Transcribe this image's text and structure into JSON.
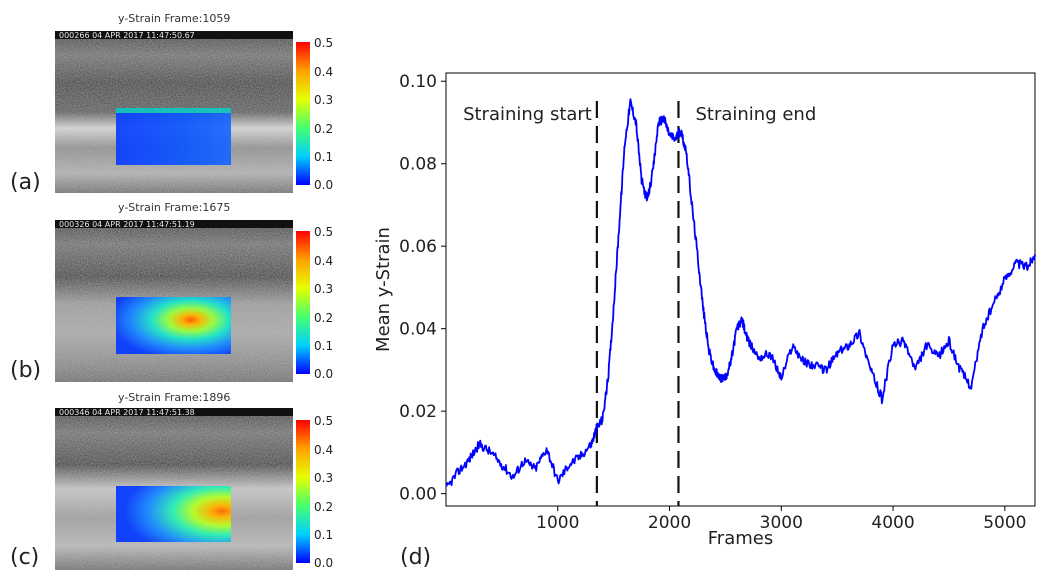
{
  "panels": [
    {
      "letter": "(a)",
      "title": "y-Strain Frame:1059",
      "timestamp": "000266 04 APR 2017  11:47:50.67",
      "strain_level": 0.02
    },
    {
      "letter": "(b)",
      "title": "y-Strain Frame:1675",
      "timestamp": "000326 04 APR 2017  11:47:51.19",
      "strain_level": 0.35
    },
    {
      "letter": "(c)",
      "title": "y-Strain Frame:1896",
      "timestamp": "000346 04 APR 2017  11:47:51.38",
      "strain_level": 0.42
    }
  ],
  "colorbar": {
    "ticks": [
      "0.5",
      "0.4",
      "0.3",
      "0.2",
      "0.1",
      "0.0"
    ],
    "colors": [
      "#ff0000",
      "#ffa000",
      "#e6ff00",
      "#46ff6e",
      "#00d0ff",
      "#0000ff"
    ]
  },
  "plot_letter": "(d)",
  "chart_data": {
    "type": "line",
    "xlabel": "Frames",
    "ylabel": "Mean y-Strain",
    "xlim": [
      0,
      5270
    ],
    "ylim": [
      -0.003,
      0.102
    ],
    "xticks": [
      1000,
      2000,
      3000,
      4000,
      5000
    ],
    "yticks": [
      0.0,
      0.02,
      0.04,
      0.06,
      0.08,
      0.1
    ],
    "ytick_labels": [
      "0.00",
      "0.02",
      "0.04",
      "0.06",
      "0.08",
      "0.10"
    ],
    "line_color": "#0000ff",
    "vlines": [
      {
        "x": 1350,
        "label": "Straining start",
        "label_side": "left"
      },
      {
        "x": 2080,
        "label": "Straining end",
        "label_side": "right"
      }
    ],
    "x": [
      0,
      100,
      200,
      300,
      400,
      500,
      600,
      700,
      800,
      900,
      1000,
      1100,
      1200,
      1300,
      1350,
      1400,
      1450,
      1500,
      1550,
      1600,
      1650,
      1700,
      1750,
      1800,
      1850,
      1900,
      1950,
      2000,
      2050,
      2100,
      2150,
      2200,
      2250,
      2300,
      2350,
      2400,
      2450,
      2500,
      2550,
      2600,
      2650,
      2700,
      2800,
      2900,
      3000,
      3100,
      3200,
      3300,
      3400,
      3500,
      3600,
      3700,
      3800,
      3900,
      4000,
      4100,
      4200,
      4300,
      4400,
      4500,
      4600,
      4700,
      4800,
      4900,
      5000,
      5100,
      5200,
      5270
    ],
    "y": [
      0.001,
      0.005,
      0.008,
      0.012,
      0.01,
      0.007,
      0.004,
      0.008,
      0.006,
      0.011,
      0.003,
      0.007,
      0.009,
      0.012,
      0.016,
      0.018,
      0.028,
      0.045,
      0.065,
      0.085,
      0.095,
      0.09,
      0.076,
      0.071,
      0.078,
      0.09,
      0.091,
      0.087,
      0.086,
      0.088,
      0.083,
      0.07,
      0.058,
      0.045,
      0.035,
      0.03,
      0.028,
      0.028,
      0.032,
      0.04,
      0.042,
      0.037,
      0.033,
      0.034,
      0.028,
      0.036,
      0.032,
      0.031,
      0.03,
      0.034,
      0.036,
      0.039,
      0.03,
      0.023,
      0.036,
      0.037,
      0.03,
      0.036,
      0.033,
      0.037,
      0.03,
      0.026,
      0.04,
      0.046,
      0.052,
      0.056,
      0.055,
      0.058
    ]
  }
}
